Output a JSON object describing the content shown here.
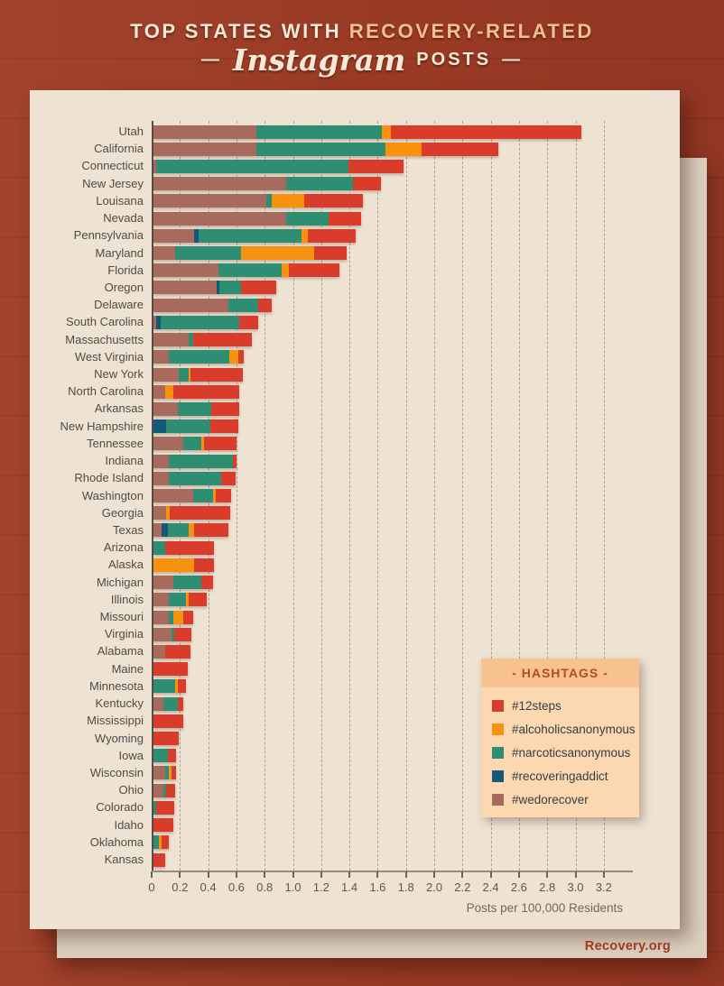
{
  "page": {
    "title_line1_part1": "TOP STATES WITH",
    "title_line1_part2": "RECOVERY-RELATED",
    "title_line2_prefix": "—",
    "title_line2_script": "Instagram",
    "title_line2_caps": "POSTS",
    "title_line2_suffix": "—",
    "footer": "Recovery.org"
  },
  "legend": {
    "header": "- HASHTAGS -",
    "items": [
      {
        "label": "#12steps",
        "color": "#d93c2b"
      },
      {
        "label": "#alcoholicsanonymous",
        "color": "#f6920e"
      },
      {
        "label": "#narcoticsanonymous",
        "color": "#2e8e71"
      },
      {
        "label": "#recoveringaddict",
        "color": "#14587a"
      },
      {
        "label": "#wedorecover",
        "color": "#a96a5e"
      }
    ]
  },
  "chart_data": {
    "type": "bar",
    "orientation": "horizontal",
    "stacked": true,
    "title": "Top States with Recovery-Related Instagram Posts",
    "xlabel": "Posts per 100,000 Residents",
    "ylabel": "",
    "xlim": [
      0,
      3.2
    ],
    "grid": "dashed-vertical",
    "legend_position": "middle-right",
    "xticks": [
      "0",
      "0.2",
      "0.4",
      "0.6",
      "0.8",
      "1.0",
      "1.2",
      "1.4",
      "1.6",
      "1.8",
      "2.0",
      "2.2",
      "2.4",
      "2.6",
      "2.8",
      "3.0",
      "3.2"
    ],
    "categories": [
      "Utah",
      "California",
      "Connecticut",
      "New Jersey",
      "Louisana",
      "Nevada",
      "Pennsylvania",
      "Maryland",
      "Florida",
      "Oregon",
      "Delaware",
      "South Carolina",
      "Massachusetts",
      "West Virginia",
      "New York",
      "North Carolina",
      "Arkansas",
      "New Hampshire",
      "Tennessee",
      "Indiana",
      "Rhode Island",
      "Washington",
      "Georgia",
      "Texas",
      "Arizona",
      "Alaska",
      "Michigan",
      "Illinois",
      "Missouri",
      "Virginia",
      "Alabama",
      "Maine",
      "Minnesota",
      "Kentucky",
      "Mississippi",
      "Wyoming",
      "Iowa",
      "Wisconsin",
      "Ohio",
      "Colorado",
      "Idaho",
      "Oklahoma",
      "Kansas"
    ],
    "series": [
      {
        "name": "#wedorecover",
        "color": "#a96a5e",
        "values": [
          0.73,
          0.73,
          0.02,
          0.94,
          0.8,
          0.94,
          0.29,
          0.15,
          0.46,
          0.45,
          0.53,
          0.02,
          0.25,
          0.11,
          0.18,
          0.08,
          0.17,
          0,
          0.21,
          0.11,
          0.11,
          0.28,
          0.09,
          0.06,
          0,
          0,
          0.14,
          0.11,
          0.11,
          0.13,
          0.08,
          0,
          0,
          0.07,
          0,
          0,
          0,
          0.08,
          0.07,
          0,
          0,
          0,
          0
        ]
      },
      {
        "name": "#recoveringaddict",
        "color": "#14587a",
        "values": [
          0,
          0,
          0,
          0,
          0,
          0,
          0.03,
          0,
          0,
          0.02,
          0,
          0.03,
          0,
          0,
          0,
          0,
          0,
          0.09,
          0,
          0,
          0,
          0,
          0,
          0.04,
          0,
          0,
          0,
          0,
          0,
          0,
          0,
          0,
          0,
          0,
          0,
          0,
          0,
          0,
          0,
          0,
          0,
          0,
          0
        ]
      },
      {
        "name": "#narcoticsanonymous",
        "color": "#2e8e71",
        "values": [
          0.89,
          0.91,
          1.36,
          0.47,
          0.04,
          0.3,
          0.73,
          0.47,
          0.45,
          0.15,
          0.21,
          0.56,
          0.03,
          0.43,
          0.07,
          0,
          0.24,
          0.31,
          0.13,
          0.45,
          0.37,
          0.14,
          0,
          0.15,
          0.08,
          0,
          0.2,
          0.12,
          0.03,
          0.02,
          0,
          0,
          0.15,
          0.1,
          0,
          0,
          0.1,
          0.03,
          0.02,
          0.02,
          0,
          0.04,
          0
        ]
      },
      {
        "name": "#alcoholicsanonymous",
        "color": "#f6920e",
        "values": [
          0.06,
          0.26,
          0,
          0,
          0.23,
          0,
          0.04,
          0.52,
          0.05,
          0,
          0,
          0,
          0,
          0.06,
          0.01,
          0.06,
          0,
          0,
          0.02,
          0,
          0,
          0.02,
          0.025,
          0.04,
          0,
          0.29,
          0,
          0.02,
          0.07,
          0,
          0,
          0,
          0.02,
          0,
          0,
          0,
          0,
          0.02,
          0,
          0,
          0,
          0.02,
          0
        ]
      },
      {
        "name": "#12steps",
        "color": "#d93c2b",
        "values": [
          1.35,
          0.54,
          0.39,
          0.2,
          0.41,
          0.23,
          0.34,
          0.23,
          0.36,
          0.25,
          0.1,
          0.13,
          0.42,
          0.04,
          0.37,
          0.47,
          0.2,
          0.2,
          0.23,
          0.03,
          0.1,
          0.11,
          0.43,
          0.24,
          0.35,
          0.14,
          0.08,
          0.13,
          0.07,
          0.12,
          0.18,
          0.24,
          0.06,
          0.04,
          0.21,
          0.18,
          0.06,
          0.03,
          0.065,
          0.13,
          0.14,
          0.05,
          0.08
        ]
      }
    ]
  }
}
